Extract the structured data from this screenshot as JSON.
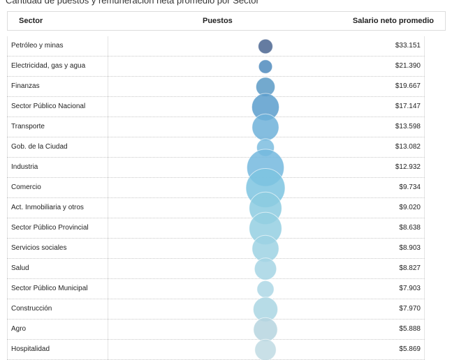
{
  "title": "Cantidad de puestos y remuneración neta promedio por Sector",
  "headers": {
    "sector": "Sector",
    "puestos": "Puestos",
    "salario": "Salario neto promedio"
  },
  "chart_data": {
    "type": "table",
    "title": "Cantidad de puestos y remuneración neta promedio por Sector",
    "columns": [
      "Sector",
      "Puestos",
      "Salario neto promedio"
    ],
    "bubble_encoding": "Puestos (relative size, unlabeled)",
    "rows": [
      {
        "sector": "Petróleo y minas",
        "salario": "$33.151",
        "puestos_rel": 0.04,
        "color": "#4a6590"
      },
      {
        "sector": "Electricidad, gas y agua",
        "salario": "$21.390",
        "puestos_rel": 0.03,
        "color": "#4f8bbd"
      },
      {
        "sector": "Finanzas",
        "salario": "$19.667",
        "puestos_rel": 0.12,
        "color": "#5a9ac6"
      },
      {
        "sector": "Sector Público Nacional",
        "salario": "$17.147",
        "puestos_rel": 0.38,
        "color": "#5b9ecd"
      },
      {
        "sector": "Transporte",
        "salario": "$13.598",
        "puestos_rel": 0.36,
        "color": "#6eb2d9"
      },
      {
        "sector": "Gob. de la Ciudad",
        "salario": "$13.082",
        "puestos_rel": 0.09,
        "color": "#7dbddf"
      },
      {
        "sector": "Industria",
        "salario": "$12.932",
        "puestos_rel": 0.88,
        "color": "#74b9de"
      },
      {
        "sector": "Comercio",
        "salario": "$9.734",
        "puestos_rel": 1.0,
        "color": "#7ec4e0"
      },
      {
        "sector": "Act. Inmobiliaria y otros",
        "salario": "$9.020",
        "puestos_rel": 0.62,
        "color": "#8ccbe1"
      },
      {
        "sector": "Sector Público Provincial",
        "salario": "$8.638",
        "puestos_rel": 0.62,
        "color": "#94cfe2"
      },
      {
        "sector": "Servicios sociales",
        "salario": "$8.903",
        "puestos_rel": 0.36,
        "color": "#9ed2e3"
      },
      {
        "sector": "Salud",
        "salario": "$8.827",
        "puestos_rel": 0.2,
        "color": "#a6d5e4"
      },
      {
        "sector": "Sector Público Municipal",
        "salario": "$7.903",
        "puestos_rel": 0.08,
        "color": "#add7e5"
      },
      {
        "sector": "Construcción",
        "salario": "$7.970",
        "puestos_rel": 0.28,
        "color": "#aad6e3"
      },
      {
        "sector": "Agro",
        "salario": "$5.888",
        "puestos_rel": 0.26,
        "color": "#b6d5df"
      },
      {
        "sector": "Hospitalidad",
        "salario": "$5.869",
        "puestos_rel": 0.18,
        "color": "#bfdae3"
      }
    ]
  }
}
